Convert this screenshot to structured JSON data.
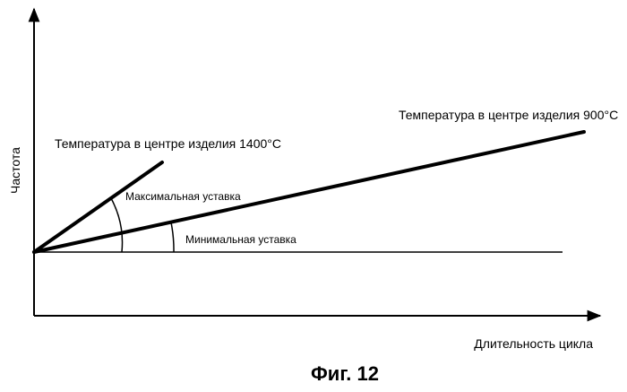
{
  "axes": {
    "y_label": "Частота",
    "x_label": "Длительность цикла"
  },
  "lines": {
    "temp_1400": "Температура в центре изделия 1400°C",
    "temp_900": "Температура в центре изделия 900°C"
  },
  "angles": {
    "max_setpoint": "Максимальная уставка",
    "min_setpoint": "Минимальная уставка"
  },
  "caption": "Фиг. 12"
}
